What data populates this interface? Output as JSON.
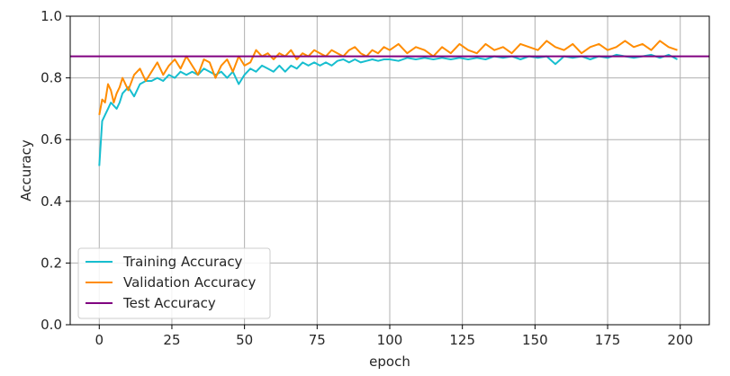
{
  "chart_data": {
    "type": "line",
    "xlabel": "epoch",
    "ylabel": "Accuracy",
    "xlim": [
      -10,
      210
    ],
    "ylim": [
      0.0,
      1.0
    ],
    "xticks": [
      0,
      25,
      50,
      75,
      100,
      125,
      150,
      175,
      200
    ],
    "yticks": [
      0.0,
      0.2,
      0.4,
      0.6,
      0.8,
      1.0
    ],
    "xtick_labels": [
      "0",
      "25",
      "50",
      "75",
      "100",
      "125",
      "150",
      "175",
      "200"
    ],
    "ytick_labels": [
      "0.0",
      "0.2",
      "0.4",
      "0.6",
      "0.8",
      "1.0"
    ],
    "grid": true,
    "legend_position": "lower-left",
    "series": [
      {
        "name": "Training Accuracy",
        "color": "#17becf",
        "x": [
          0,
          1,
          2,
          3,
          4,
          5,
          6,
          7,
          8,
          10,
          12,
          14,
          16,
          18,
          20,
          22,
          24,
          26,
          28,
          30,
          32,
          34,
          36,
          38,
          40,
          42,
          44,
          46,
          48,
          50,
          52,
          54,
          56,
          58,
          60,
          62,
          64,
          66,
          68,
          70,
          72,
          74,
          76,
          78,
          80,
          82,
          84,
          86,
          88,
          90,
          92,
          94,
          96,
          98,
          100,
          103,
          106,
          109,
          112,
          115,
          118,
          121,
          124,
          127,
          130,
          133,
          136,
          139,
          142,
          145,
          148,
          151,
          154,
          157,
          160,
          163,
          166,
          169,
          172,
          175,
          178,
          181,
          184,
          187,
          190,
          193,
          196,
          199
        ],
        "y": [
          0.515,
          0.66,
          0.68,
          0.7,
          0.72,
          0.71,
          0.7,
          0.72,
          0.75,
          0.77,
          0.74,
          0.78,
          0.79,
          0.79,
          0.8,
          0.79,
          0.81,
          0.8,
          0.82,
          0.81,
          0.82,
          0.81,
          0.83,
          0.82,
          0.81,
          0.82,
          0.8,
          0.82,
          0.78,
          0.81,
          0.83,
          0.82,
          0.84,
          0.83,
          0.82,
          0.84,
          0.82,
          0.84,
          0.83,
          0.85,
          0.84,
          0.85,
          0.84,
          0.85,
          0.84,
          0.855,
          0.86,
          0.85,
          0.86,
          0.85,
          0.855,
          0.86,
          0.855,
          0.86,
          0.86,
          0.855,
          0.865,
          0.86,
          0.865,
          0.86,
          0.865,
          0.86,
          0.865,
          0.86,
          0.865,
          0.86,
          0.87,
          0.865,
          0.87,
          0.86,
          0.87,
          0.865,
          0.87,
          0.845,
          0.87,
          0.865,
          0.87,
          0.86,
          0.87,
          0.865,
          0.875,
          0.87,
          0.865,
          0.87,
          0.875,
          0.865,
          0.875,
          0.86
        ]
      },
      {
        "name": "Validation Accuracy",
        "color": "#ff8c00",
        "x": [
          0,
          1,
          2,
          3,
          4,
          5,
          6,
          7,
          8,
          10,
          12,
          14,
          16,
          18,
          20,
          22,
          24,
          26,
          28,
          30,
          32,
          34,
          36,
          38,
          40,
          42,
          44,
          46,
          48,
          50,
          52,
          54,
          56,
          58,
          60,
          62,
          64,
          66,
          68,
          70,
          72,
          74,
          76,
          78,
          80,
          82,
          84,
          86,
          88,
          90,
          92,
          94,
          96,
          98,
          100,
          103,
          106,
          109,
          112,
          115,
          118,
          121,
          124,
          127,
          130,
          133,
          136,
          139,
          142,
          145,
          148,
          151,
          154,
          157,
          160,
          163,
          166,
          169,
          172,
          175,
          178,
          181,
          184,
          187,
          190,
          193,
          196,
          199
        ],
        "y": [
          0.68,
          0.73,
          0.72,
          0.78,
          0.76,
          0.72,
          0.75,
          0.77,
          0.8,
          0.76,
          0.81,
          0.83,
          0.79,
          0.82,
          0.85,
          0.81,
          0.84,
          0.86,
          0.83,
          0.87,
          0.84,
          0.81,
          0.86,
          0.85,
          0.8,
          0.84,
          0.86,
          0.82,
          0.87,
          0.84,
          0.85,
          0.89,
          0.87,
          0.88,
          0.86,
          0.88,
          0.87,
          0.89,
          0.86,
          0.88,
          0.87,
          0.89,
          0.88,
          0.87,
          0.89,
          0.88,
          0.87,
          0.89,
          0.9,
          0.88,
          0.87,
          0.89,
          0.88,
          0.9,
          0.89,
          0.91,
          0.88,
          0.9,
          0.89,
          0.87,
          0.9,
          0.88,
          0.91,
          0.89,
          0.88,
          0.91,
          0.89,
          0.9,
          0.88,
          0.91,
          0.9,
          0.89,
          0.92,
          0.9,
          0.89,
          0.91,
          0.88,
          0.9,
          0.91,
          0.89,
          0.9,
          0.92,
          0.9,
          0.91,
          0.89,
          0.92,
          0.9,
          0.89
        ]
      },
      {
        "name": "Test Accuracy",
        "color": "#800080",
        "constant": 0.87
      }
    ]
  }
}
